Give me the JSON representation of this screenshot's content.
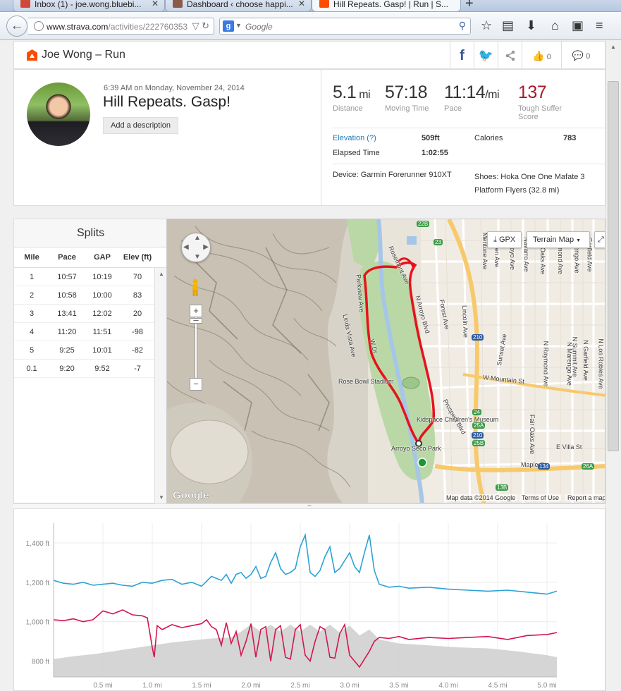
{
  "browser": {
    "tabs": [
      {
        "label": "Inbox (1) - joe.wong.bluebi...",
        "active": false,
        "favicon_color": "#d14836"
      },
      {
        "label": "Dashboard ‹ choose happi...",
        "active": false,
        "favicon_color": "#8a5a4a"
      },
      {
        "label": "Hill Repeats. Gasp! | Run | S...",
        "active": true,
        "favicon_color": "#fc4c02"
      }
    ],
    "url_host": "www.strava.com",
    "url_path": "/activities/222760353",
    "search_placeholder": "Google"
  },
  "header": {
    "title": "Joe Wong – Run",
    "kudos_count": "0",
    "comment_count": "0"
  },
  "summary": {
    "date": "6:39 AM on Monday, November 24, 2014",
    "title": "Hill Repeats. Gasp!",
    "add_description": "Add a description",
    "stats": [
      {
        "value": "5.1",
        "unit": "mi",
        "label": "Distance"
      },
      {
        "value": "57:18",
        "unit": "",
        "label": "Moving Time"
      },
      {
        "value": "11:14",
        "unit": "/mi",
        "label": "Pace"
      },
      {
        "value": "137",
        "unit": "",
        "label": "Tough Suffer Score"
      }
    ],
    "elevation_label": "Elevation (?)",
    "elevation_value": "509ft",
    "calories_label": "Calories",
    "calories_value": "783",
    "elapsed_label": "Elapsed Time",
    "elapsed_value": "1:02:55",
    "device": "Device: Garmin Forerunner 910XT",
    "shoes": "Shoes: Hoka One One Mafate 3 Platform Flyers (32.8 mi)"
  },
  "splits": {
    "title": "Splits",
    "columns": [
      "Mile",
      "Pace",
      "GAP",
      "Elev (ft)"
    ],
    "rows": [
      [
        "1",
        "10:57",
        "10:19",
        "70"
      ],
      [
        "2",
        "10:58",
        "10:00",
        "83"
      ],
      [
        "3",
        "13:41",
        "12:02",
        "20"
      ],
      [
        "4",
        "11:20",
        "11:51",
        "-98"
      ],
      [
        "5",
        "9:25",
        "10:01",
        "-82"
      ],
      [
        "0.1",
        "9:20",
        "9:52",
        "-7"
      ]
    ]
  },
  "map": {
    "gpx_label": "GPX",
    "type_label": "Terrain Map",
    "attribution": "Map data ©2014 Google",
    "terms": "Terms of Use",
    "report": "Report a map error",
    "google_logo": "Google",
    "labels": [
      "Rose Bowl Stadium",
      "Kidspace Children's Museum",
      "Arroyo Seco Park",
      "Linda Vista Ave",
      "N Arroyo Blvd",
      "Forest Ave",
      "Lincoln Ave",
      "W Mountain St",
      "Sunset Ave",
      "Prospect Blvd",
      "Maple St",
      "E Villa St",
      "N Raymond Ave",
      "N Marengo Ave",
      "N Garfield Ave",
      "N Los Robles Ave",
      "Fair Oaks Ave",
      "N Summit Ave",
      "Mentone Ave",
      "Parkview Ave",
      "Rosemont Ave",
      "W Dr",
      "Glen Ave",
      "Arroyo Ave",
      "Navarro Ave",
      "Fair Oaks Ave",
      "Raymond Ave",
      "Marengo Ave",
      "Garfield Ave"
    ],
    "shields": [
      "22B",
      "23",
      "210",
      "210",
      "24",
      "25A",
      "25B",
      "134",
      "26A",
      "13B"
    ],
    "colors": {
      "route": "#e8111b",
      "park": "#b9d8a5",
      "water": "#a6c6e8",
      "freeway": "#f7c96a"
    }
  },
  "chart_data": {
    "type": "line",
    "x_unit": "mi",
    "xlim": [
      0,
      5.1
    ],
    "x_ticks": [
      "0.5 mi",
      "1.0 mi",
      "1.5 mi",
      "2.0 mi",
      "2.5 mi",
      "3.0 mi",
      "3.5 mi",
      "4.0 mi",
      "4.5 mi",
      "5.0 mi"
    ],
    "x_tick_values": [
      0.5,
      1.0,
      1.5,
      2.0,
      2.5,
      3.0,
      3.5,
      4.0,
      4.5,
      5.0
    ],
    "ylim": [
      720,
      1500
    ],
    "y_ticks": [
      "1,400 ft",
      "1,200 ft",
      "1,000 ft",
      "800 ft"
    ],
    "y_tick_values": [
      1400,
      1200,
      1000,
      800
    ],
    "grid": true,
    "series": [
      {
        "color": "#2ca2d6",
        "x": [
          0,
          0.1,
          0.2,
          0.3,
          0.4,
          0.5,
          0.6,
          0.7,
          0.8,
          0.9,
          1.0,
          1.1,
          1.2,
          1.3,
          1.4,
          1.5,
          1.6,
          1.7,
          1.75,
          1.8,
          1.85,
          1.9,
          1.95,
          2.0,
          2.05,
          2.1,
          2.15,
          2.2,
          2.25,
          2.3,
          2.35,
          2.4,
          2.45,
          2.5,
          2.55,
          2.6,
          2.65,
          2.7,
          2.75,
          2.8,
          2.85,
          2.9,
          2.95,
          3.0,
          3.05,
          3.1,
          3.15,
          3.2,
          3.25,
          3.3,
          3.4,
          3.5,
          3.6,
          3.8,
          4.0,
          4.2,
          4.4,
          4.6,
          4.8,
          5.0,
          5.1
        ],
        "y": [
          1210,
          1195,
          1190,
          1200,
          1185,
          1190,
          1195,
          1185,
          1180,
          1200,
          1195,
          1210,
          1215,
          1190,
          1200,
          1180,
          1230,
          1210,
          1240,
          1195,
          1240,
          1250,
          1220,
          1240,
          1280,
          1220,
          1230,
          1300,
          1350,
          1270,
          1240,
          1250,
          1270,
          1380,
          1440,
          1250,
          1230,
          1260,
          1330,
          1380,
          1250,
          1270,
          1310,
          1350,
          1280,
          1250,
          1350,
          1440,
          1260,
          1190,
          1175,
          1180,
          1170,
          1175,
          1165,
          1160,
          1155,
          1160,
          1150,
          1140,
          1155
        ]
      },
      {
        "color": "#d4164e",
        "x": [
          0,
          0.1,
          0.2,
          0.3,
          0.4,
          0.5,
          0.6,
          0.7,
          0.8,
          0.9,
          0.95,
          1.0,
          1.02,
          1.05,
          1.1,
          1.2,
          1.3,
          1.4,
          1.5,
          1.55,
          1.6,
          1.65,
          1.7,
          1.75,
          1.8,
          1.85,
          1.9,
          1.95,
          2.0,
          2.05,
          2.1,
          2.15,
          2.2,
          2.25,
          2.3,
          2.35,
          2.4,
          2.45,
          2.5,
          2.55,
          2.6,
          2.65,
          2.7,
          2.75,
          2.8,
          2.85,
          2.9,
          2.95,
          3.0,
          3.05,
          3.1,
          3.15,
          3.2,
          3.25,
          3.3,
          3.4,
          3.5,
          3.6,
          3.8,
          4.0,
          4.2,
          4.4,
          4.6,
          4.8,
          5.0,
          5.1
        ],
        "y": [
          1010,
          1005,
          1015,
          1000,
          1010,
          1055,
          1040,
          1060,
          1035,
          1030,
          1020,
          870,
          820,
          980,
          960,
          985,
          970,
          980,
          990,
          1010,
          975,
          960,
          880,
          995,
          890,
          950,
          830,
          900,
          990,
          820,
          960,
          975,
          800,
          960,
          980,
          820,
          810,
          960,
          985,
          830,
          800,
          900,
          975,
          960,
          820,
          815,
          940,
          985,
          830,
          800,
          770,
          810,
          850,
          900,
          920,
          915,
          925,
          910,
          920,
          915,
          920,
          925,
          910,
          930,
          935,
          945
        ]
      },
      {
        "color": "#d0d0d0",
        "x": [
          0,
          0.2,
          0.4,
          0.6,
          0.8,
          1.0,
          1.2,
          1.4,
          1.6,
          1.8,
          1.9,
          2.0,
          2.1,
          2.2,
          2.3,
          2.4,
          2.5,
          2.6,
          2.7,
          2.8,
          2.9,
          3.0,
          3.1,
          3.2,
          3.3,
          3.5,
          3.8,
          4.1,
          4.4,
          4.7,
          5.0,
          5.1
        ],
        "y": [
          810,
          825,
          835,
          850,
          865,
          880,
          895,
          905,
          915,
          920,
          950,
          985,
          950,
          985,
          950,
          985,
          950,
          985,
          950,
          985,
          945,
          980,
          930,
          960,
          910,
          890,
          880,
          870,
          865,
          850,
          830,
          820
        ]
      }
    ]
  }
}
